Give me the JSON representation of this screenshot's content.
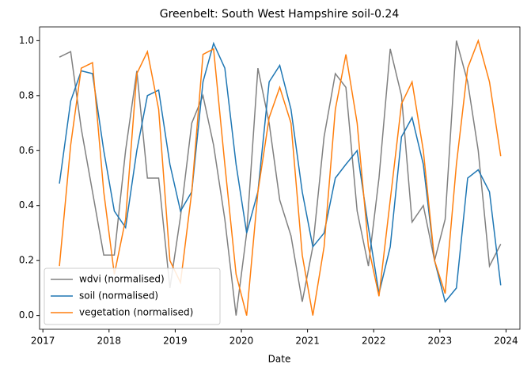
{
  "chart_data": {
    "type": "line",
    "title": "Greenbelt: South West Hampshire soil-0.24",
    "x_label": "Date",
    "x": [
      2017.25,
      2017.42,
      2017.58,
      2017.75,
      2017.92,
      2018.08,
      2018.25,
      2018.42,
      2018.58,
      2018.75,
      2018.92,
      2019.08,
      2019.25,
      2019.42,
      2019.58,
      2019.75,
      2019.92,
      2020.08,
      2020.25,
      2020.42,
      2020.58,
      2020.75,
      2020.92,
      2021.08,
      2021.25,
      2021.42,
      2021.58,
      2021.75,
      2021.92,
      2022.08,
      2022.25,
      2022.42,
      2022.58,
      2022.75,
      2022.92,
      2023.08,
      2023.25,
      2023.42,
      2023.58,
      2023.75,
      2023.92
    ],
    "series": [
      {
        "name": "wdvi (normalised)",
        "color": "#808080",
        "values": [
          0.94,
          0.96,
          0.68,
          0.45,
          0.22,
          0.22,
          0.6,
          0.89,
          0.5,
          0.5,
          0.1,
          0.36,
          0.7,
          0.8,
          0.62,
          0.35,
          0.0,
          0.3,
          0.9,
          0.7,
          0.42,
          0.29,
          0.05,
          0.25,
          0.65,
          0.88,
          0.83,
          0.38,
          0.18,
          0.5,
          0.97,
          0.8,
          0.34,
          0.4,
          0.2,
          0.35,
          1.0,
          0.85,
          0.6,
          0.18,
          0.26
        ]
      },
      {
        "name": "soil (normalised)",
        "color": "#1f77b4",
        "values": [
          0.48,
          0.78,
          0.89,
          0.88,
          0.6,
          0.38,
          0.32,
          0.6,
          0.8,
          0.82,
          0.55,
          0.38,
          0.45,
          0.85,
          0.99,
          0.9,
          0.55,
          0.3,
          0.45,
          0.85,
          0.91,
          0.75,
          0.45,
          0.25,
          0.3,
          0.5,
          0.55,
          0.6,
          0.32,
          0.08,
          0.25,
          0.65,
          0.72,
          0.55,
          0.2,
          0.05,
          0.1,
          0.5,
          0.53,
          0.45,
          0.11
        ]
      },
      {
        "name": "vegetation (normalised)",
        "color": "#ff7f0e",
        "values": [
          0.18,
          0.62,
          0.9,
          0.92,
          0.45,
          0.15,
          0.35,
          0.88,
          0.96,
          0.75,
          0.2,
          0.12,
          0.45,
          0.95,
          0.97,
          0.55,
          0.15,
          0.0,
          0.45,
          0.72,
          0.83,
          0.7,
          0.22,
          0.0,
          0.25,
          0.75,
          0.95,
          0.7,
          0.25,
          0.07,
          0.42,
          0.77,
          0.85,
          0.6,
          0.2,
          0.08,
          0.55,
          0.9,
          1.0,
          0.85,
          0.58
        ]
      }
    ],
    "xlim": [
      2016.95,
      2024.21
    ],
    "xticks": [
      2017,
      2018,
      2019,
      2020,
      2021,
      2022,
      2023,
      2024
    ],
    "ylim": [
      -0.05,
      1.05
    ],
    "yticks": [
      {
        "value": 0,
        "label": "0.0"
      },
      {
        "value": 0.2,
        "label": "0.2"
      },
      {
        "value": 0.4,
        "label": "0.4"
      },
      {
        "value": 0.6,
        "label": "0.6"
      },
      {
        "value": 0.8,
        "label": "0.8"
      },
      {
        "value": 1.0,
        "label": "1.0"
      }
    ],
    "legend": "lower left"
  }
}
